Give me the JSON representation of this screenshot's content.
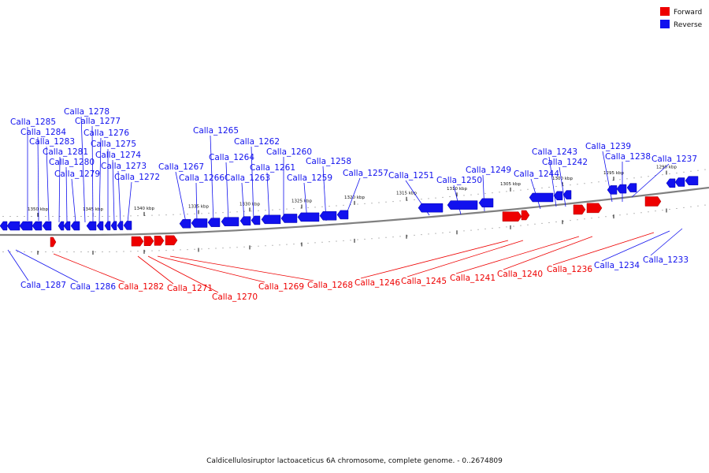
{
  "caption": "Caldicellulosiruptor lactoaceticus 6A chromosome, complete genome. - 0..2674809",
  "legend": [
    {
      "label": "Forward",
      "color": "#ee0000"
    },
    {
      "label": "Reverse",
      "color": "#1111ee"
    }
  ],
  "colors": {
    "forward": "#ee0000",
    "reverse": "#1111ee",
    "backbone": "#808080"
  },
  "ticks": [
    "1350 kbp",
    "1345 kbp",
    "1340 kbp",
    "1335 kbp",
    "1330 kbp",
    "1325 kbp",
    "1320 kbp",
    "1315 kbp",
    "1310 kbp",
    "1305 kbp",
    "1300 kbp",
    "1295 kbp",
    "1290 kbp"
  ],
  "reverse_genes": [
    "Calla_1287",
    "Calla_1286",
    "Calla_1285",
    "Calla_1284",
    "Calla_1283",
    "Calla_1281",
    "Calla_1280",
    "Calla_1279",
    "Calla_1278",
    "Calla_1277",
    "Calla_1276",
    "Calla_1275",
    "Calla_1274",
    "Calla_1273",
    "Calla_1272",
    "Calla_1267",
    "Calla_1266",
    "Calla_1265",
    "Calla_1264",
    "Calla_1263",
    "Calla_1262",
    "Calla_1261",
    "Calla_1260",
    "Calla_1259",
    "Calla_1258",
    "Calla_1257",
    "Calla_1251",
    "Calla_1250",
    "Calla_1249",
    "Calla_1244",
    "Calla_1243",
    "Calla_1242",
    "Calla_1239",
    "Calla_1238",
    "Calla_1237",
    "Calla_1234",
    "Calla_1233"
  ],
  "forward_genes": [
    "Calla_1282",
    "Calla_1271",
    "Calla_1270",
    "Calla_1269",
    "Calla_1268",
    "Calla_1246",
    "Calla_1245",
    "Calla_1241",
    "Calla_1240",
    "Calla_1236"
  ]
}
